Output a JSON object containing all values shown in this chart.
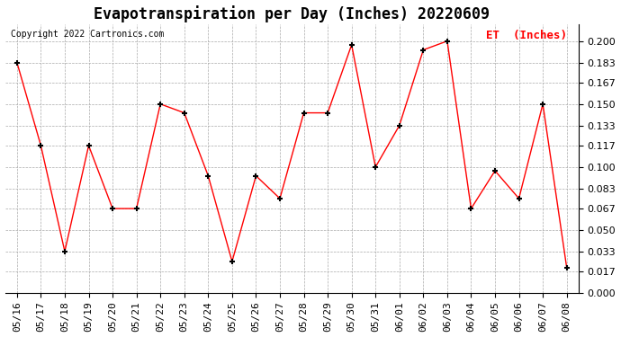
{
  "title": "Evapotranspiration per Day (Inches) 20220609",
  "copyright": "Copyright 2022 Cartronics.com",
  "legend_label": "ET  (Inches)",
  "dates": [
    "05/16",
    "05/17",
    "05/18",
    "05/19",
    "05/20",
    "05/21",
    "05/22",
    "05/23",
    "05/24",
    "05/25",
    "05/26",
    "05/27",
    "05/28",
    "05/29",
    "05/30",
    "05/31",
    "06/01",
    "06/02",
    "06/03",
    "06/04",
    "06/05",
    "06/06",
    "06/07",
    "06/08"
  ],
  "values": [
    0.183,
    0.117,
    0.033,
    0.117,
    0.067,
    0.067,
    0.15,
    0.143,
    0.093,
    0.025,
    0.093,
    0.075,
    0.143,
    0.143,
    0.197,
    0.1,
    0.133,
    0.193,
    0.2,
    0.067,
    0.097,
    0.075,
    0.15,
    0.02
  ],
  "ylim": [
    0.0,
    0.213
  ],
  "yticks": [
    0.0,
    0.017,
    0.033,
    0.05,
    0.067,
    0.083,
    0.1,
    0.117,
    0.133,
    0.15,
    0.167,
    0.183,
    0.2
  ],
  "line_color": "red",
  "marker_color": "black",
  "grid_color": "#aaaaaa",
  "bg_color": "white",
  "title_fontsize": 12,
  "axis_fontsize": 8,
  "copyright_fontsize": 7,
  "legend_fontsize": 9
}
